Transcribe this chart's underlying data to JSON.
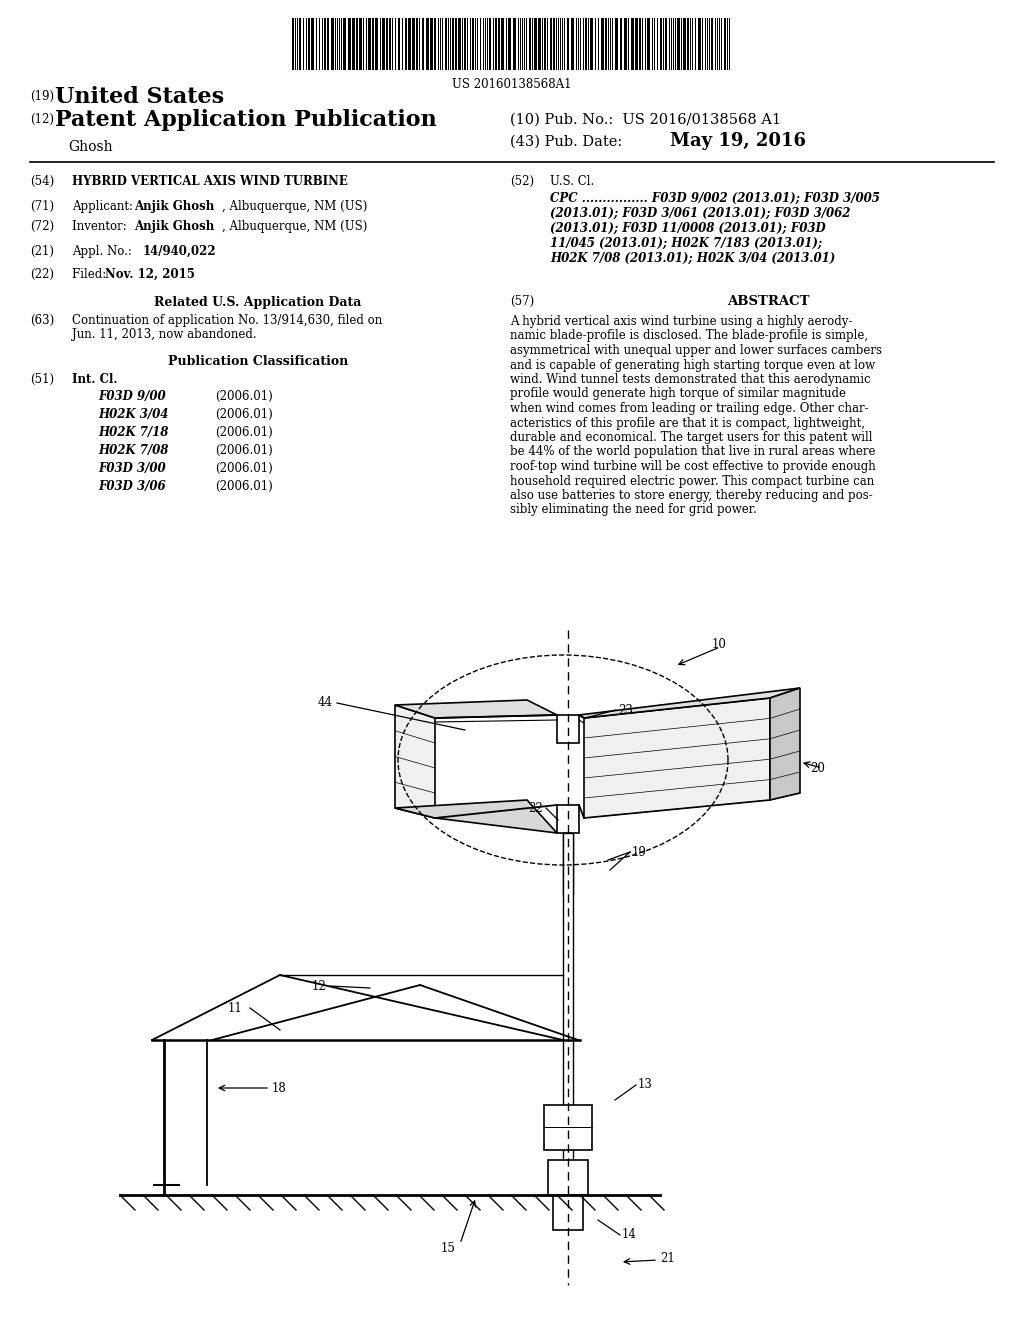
{
  "bg_color": "#ffffff",
  "barcode_text": "US 20160138568A1",
  "int_cl_entries": [
    [
      "F03D 9/00",
      "(2006.01)"
    ],
    [
      "H02K 3/04",
      "(2006.01)"
    ],
    [
      "H02K 7/18",
      "(2006.01)"
    ],
    [
      "H02K 7/08",
      "(2006.01)"
    ],
    [
      "F03D 3/00",
      "(2006.01)"
    ],
    [
      "F03D 3/06",
      "(2006.01)"
    ]
  ],
  "cpc_lines": [
    "CPC ................ F03D 9/002 (2013.01); F03D 3/005",
    "(2013.01); F03D 3/061 (2013.01); F03D 3/062",
    "(2013.01); F03D 11/0008 (2013.01); F03D",
    "11/045 (2013.01); H02K 7/183 (2013.01);",
    "H02K 7/08 (2013.01); H02K 3/04 (2013.01)"
  ],
  "abstract_lines": [
    "A hybrid vertical axis wind turbine using a highly aerody-",
    "namic blade-profile is disclosed. The blade-profile is simple,",
    "asymmetrical with unequal upper and lower surfaces cambers",
    "and is capable of generating high starting torque even at low",
    "wind. Wind tunnel tests demonstrated that this aerodynamic",
    "profile would generate high torque of similar magnitude",
    "when wind comes from leading or trailing edge. Other char-",
    "acteristics of this profile are that it is compact, lightweight,",
    "durable and economical. The target users for this patent will",
    "be 44% of the world population that live in rural areas where",
    "roof-top wind turbine will be cost effective to provide enough",
    "household required electric power. This compact turbine can",
    "also use batteries to store energy, thereby reducing and pos-",
    "sibly eliminating the need for grid power."
  ]
}
